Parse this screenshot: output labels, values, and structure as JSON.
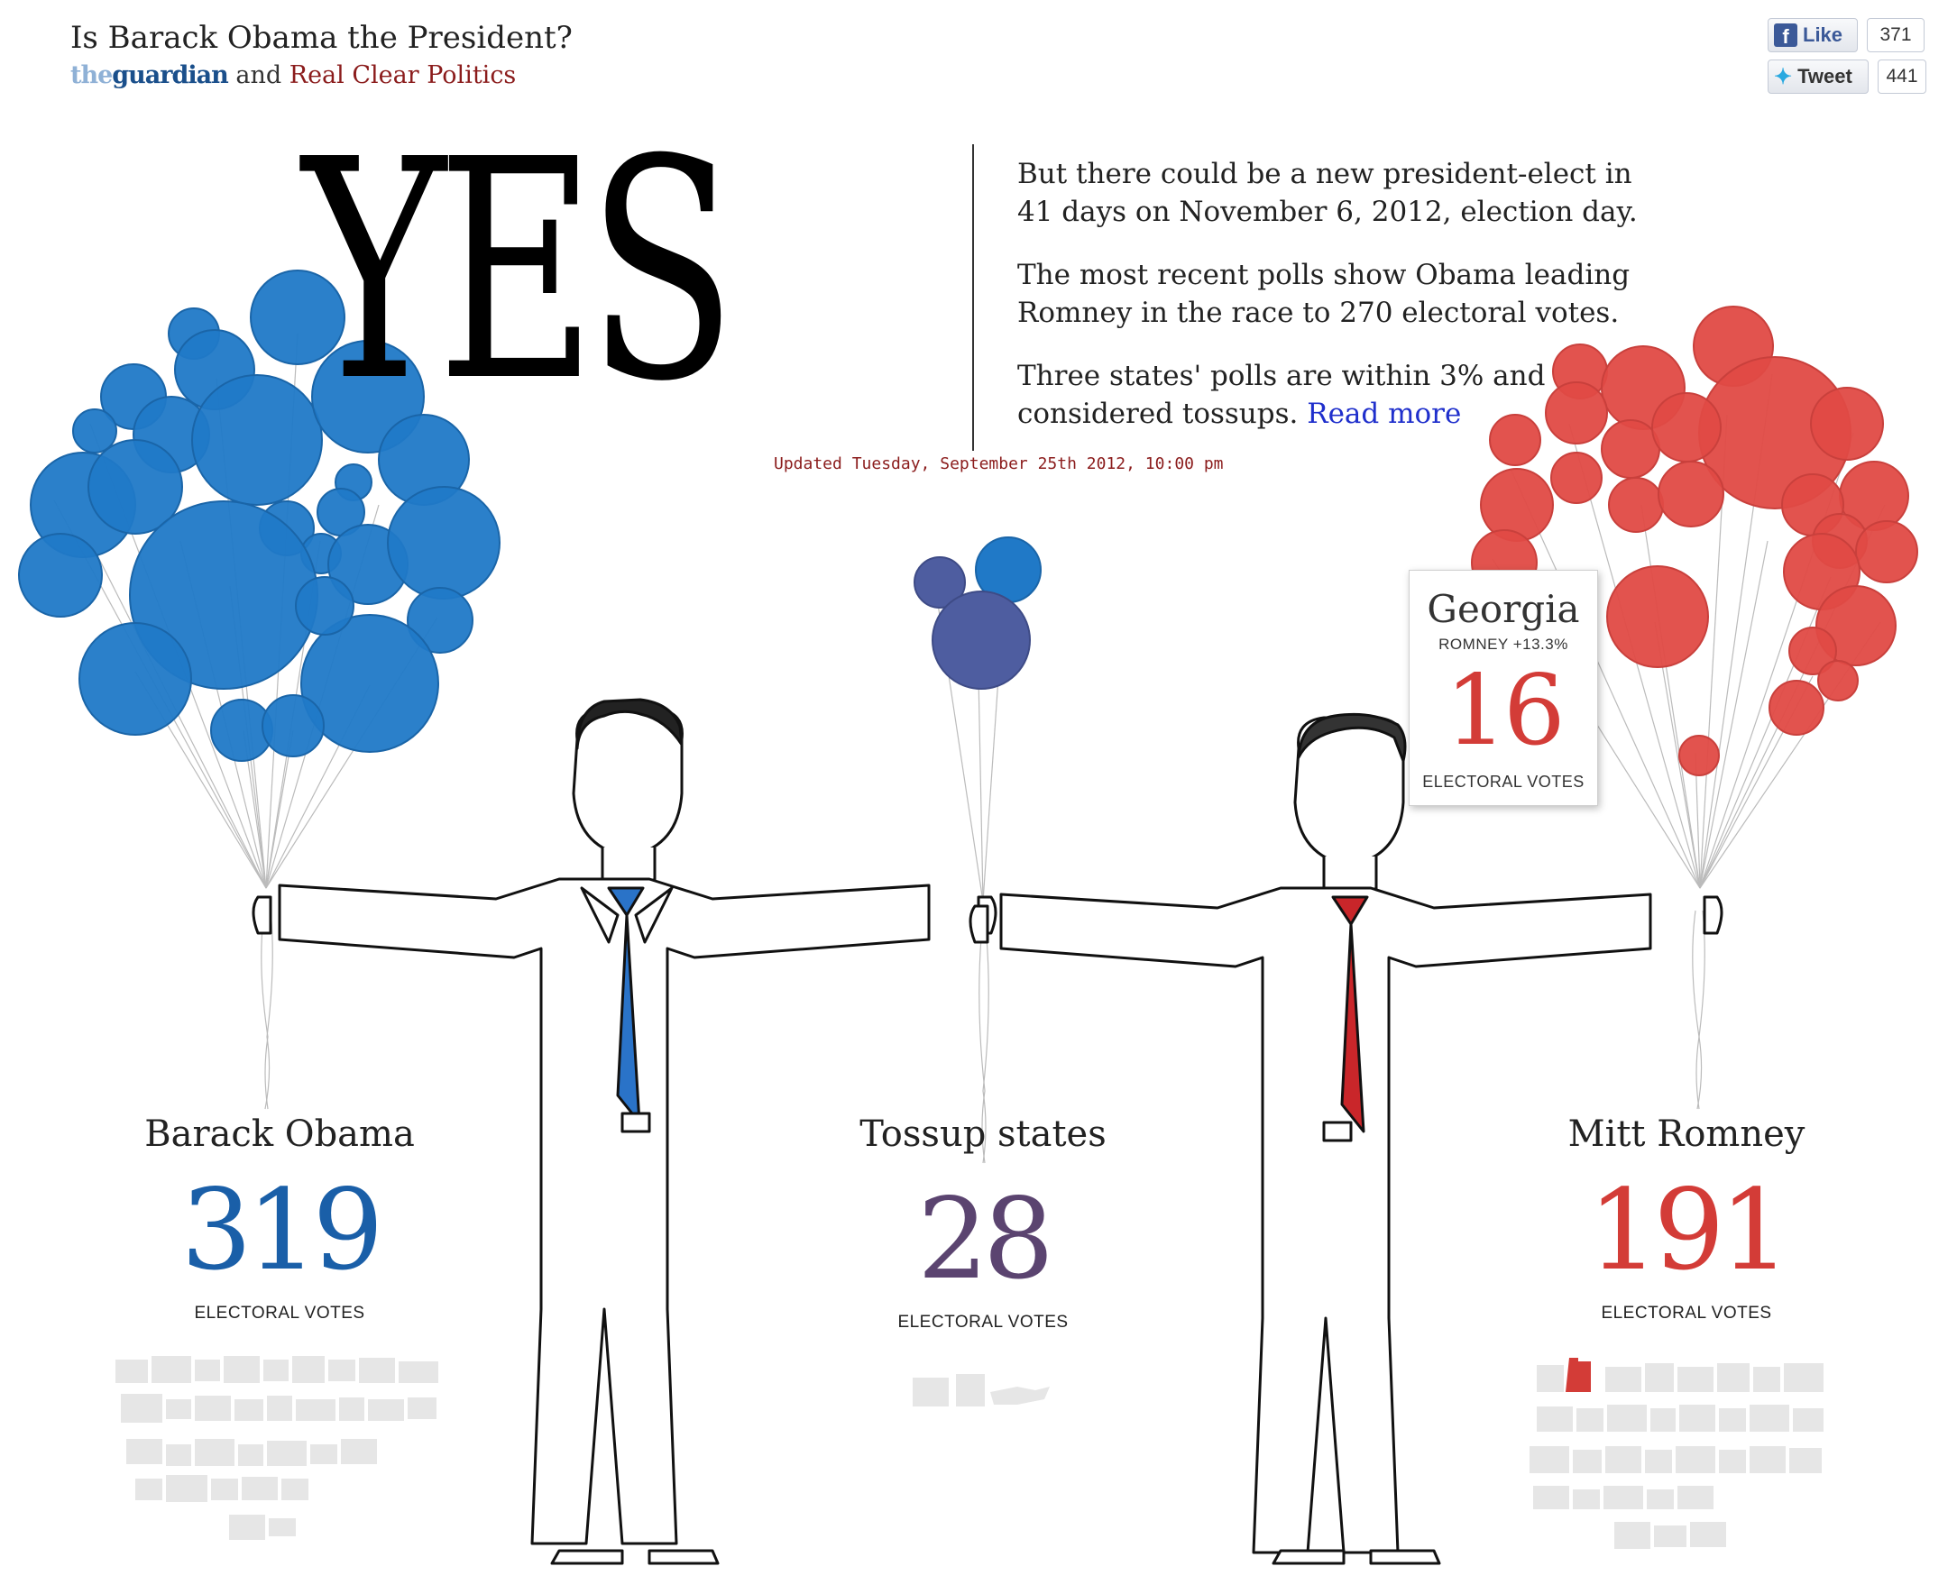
{
  "header": {
    "title": "Is Barack Obama the President?",
    "source_guardian_prefix": "the",
    "source_guardian_name": "guardian",
    "source_and": "and",
    "source_rcp": "Real Clear Politics"
  },
  "social": {
    "like_label": "Like",
    "like_count": "371",
    "tweet_label": "Tweet",
    "tweet_count": "441"
  },
  "answer": "YES",
  "intro": {
    "p1": "But there could be a new president-elect in 41 days on November 6, 2012, election day.",
    "p2": "The most recent polls show Obama leading Romney in the race to 270 electoral votes.",
    "p3": "Three states' polls are within 3% and considered tossups.",
    "read_more": "Read more"
  },
  "updated": "Updated Tuesday, September 25th 2012, 10:00 pm",
  "candidates": {
    "obama": {
      "name": "Barack Obama",
      "votes": "319",
      "label": "ELECTORAL VOTES",
      "color": "#1a5fa8"
    },
    "tossup": {
      "name": "Tossup states",
      "votes": "28",
      "label": "ELECTORAL VOTES",
      "color": "#5b4470"
    },
    "romney": {
      "name": "Mitt Romney",
      "votes": "191",
      "label": "ELECTORAL VOTES",
      "color": "#d33c37"
    }
  },
  "tooltip": {
    "state": "Georgia",
    "lead": "ROMNEY +13.3%",
    "votes": "16",
    "label": "ELECTORAL VOTES"
  },
  "colors": {
    "obama_balloon": "#2079c7",
    "romney_balloon": "#e04a45",
    "tossup_balloon": "#4e5da0",
    "state_shape": "#e6e6e6",
    "highlight_state": "#d33c37"
  }
}
